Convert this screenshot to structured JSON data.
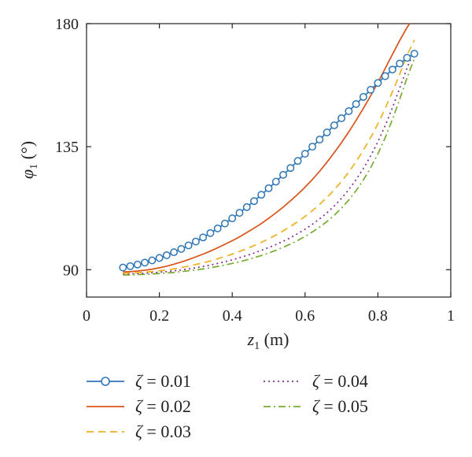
{
  "chart_data": {
    "type": "line",
    "xlabel": {
      "symbol": "z",
      "subscript": "1",
      "unit": " (m)"
    },
    "ylabel": {
      "symbol": "φ",
      "subscript": "1",
      "unit": " (°)"
    },
    "xlim": [
      0,
      1
    ],
    "ylim": [
      80,
      180
    ],
    "x_ticks": [
      0,
      0.2,
      0.4,
      0.6,
      0.8,
      1
    ],
    "x_tick_labels": [
      "0",
      "0.2",
      "0.4",
      "0.6",
      "0.8",
      "1"
    ],
    "y_ticks": [
      90,
      135,
      180
    ],
    "y_tick_labels": [
      "90",
      "135",
      "180"
    ],
    "grid": false,
    "legend_position": "bottom",
    "x": [
      0.1,
      0.12,
      0.14,
      0.16,
      0.18,
      0.2,
      0.22,
      0.24,
      0.26,
      0.28,
      0.3,
      0.32,
      0.34,
      0.36,
      0.38,
      0.4,
      0.42,
      0.44,
      0.46,
      0.48,
      0.5,
      0.52,
      0.54,
      0.56,
      0.58,
      0.6,
      0.62,
      0.64,
      0.66,
      0.68,
      0.7,
      0.72,
      0.74,
      0.76,
      0.78,
      0.8,
      0.82,
      0.84,
      0.86,
      0.88,
      0.9
    ],
    "series": [
      {
        "name": "ζ = 0.01",
        "color": "#2e75b6",
        "style": "solid-circle",
        "values": [
          90.8,
          91.3,
          91.9,
          92.6,
          93.4,
          94.3,
          95.3,
          96.4,
          97.6,
          98.9,
          100.3,
          101.8,
          103.4,
          105.1,
          106.9,
          108.8,
          110.8,
          112.9,
          115.1,
          117.4,
          119.8,
          122.2,
          124.7,
          127.2,
          129.8,
          132.4,
          135.0,
          137.6,
          140.2,
          142.8,
          145.4,
          148.0,
          150.6,
          153.2,
          155.8,
          158.3,
          160.8,
          163.2,
          165.4,
          167.5,
          169.0
        ]
      },
      {
        "name": "ζ = 0.02",
        "color": "#d95319",
        "style": "solid",
        "values": [
          89.2,
          89.3,
          89.5,
          89.8,
          90.2,
          90.7,
          91.3,
          92.0,
          92.8,
          93.7,
          94.7,
          95.7,
          96.8,
          98.0,
          99.3,
          100.6,
          102.0,
          103.6,
          105.2,
          106.9,
          108.8,
          110.8,
          112.9,
          115.2,
          117.6,
          120.2,
          123.0,
          126.0,
          129.3,
          132.8,
          136.5,
          140.4,
          144.6,
          149.0,
          153.6,
          158.5,
          163.6,
          168.8,
          173.9,
          178.6,
          182.4
        ]
      },
      {
        "name": "ζ = 0.03",
        "color": "#edb120",
        "style": "dashed",
        "values": [
          88.7,
          88.8,
          88.9,
          89.1,
          89.3,
          89.6,
          89.9,
          90.3,
          90.8,
          91.3,
          91.9,
          92.5,
          93.2,
          94.0,
          94.8,
          95.7,
          96.7,
          97.7,
          98.8,
          100.0,
          101.3,
          102.7,
          104.2,
          105.8,
          107.6,
          109.5,
          111.6,
          113.9,
          116.4,
          119.2,
          122.3,
          125.7,
          129.5,
          133.7,
          138.3,
          143.4,
          149.0,
          155.1,
          161.6,
          168.4,
          174.0
        ]
      },
      {
        "name": "ζ = 0.04",
        "color": "#7e2f8e",
        "style": "dotted",
        "values": [
          88.4,
          88.5,
          88.6,
          88.7,
          88.9,
          89.1,
          89.3,
          89.6,
          89.9,
          90.3,
          90.7,
          91.2,
          91.7,
          92.3,
          92.9,
          93.6,
          94.4,
          95.2,
          96.1,
          97.1,
          98.1,
          99.2,
          100.4,
          101.7,
          103.2,
          104.8,
          106.6,
          108.6,
          110.8,
          113.3,
          116.1,
          119.3,
          122.9,
          127.0,
          131.6,
          136.8,
          142.7,
          149.3,
          156.5,
          163.8,
          170.2
        ]
      },
      {
        "name": "ζ = 0.05",
        "color": "#77ac30",
        "style": "dashdot",
        "values": [
          88.1,
          88.1,
          88.2,
          88.3,
          88.4,
          88.6,
          88.8,
          89.0,
          89.3,
          89.6,
          89.9,
          90.3,
          90.7,
          91.2,
          91.7,
          92.3,
          92.9,
          93.6,
          94.4,
          95.2,
          96.1,
          97.1,
          98.2,
          99.4,
          100.7,
          102.2,
          103.8,
          105.6,
          107.6,
          109.9,
          112.5,
          115.5,
          118.9,
          122.8,
          127.3,
          132.4,
          138.3,
          145.0,
          152.4,
          160.2,
          167.2
        ]
      }
    ]
  }
}
